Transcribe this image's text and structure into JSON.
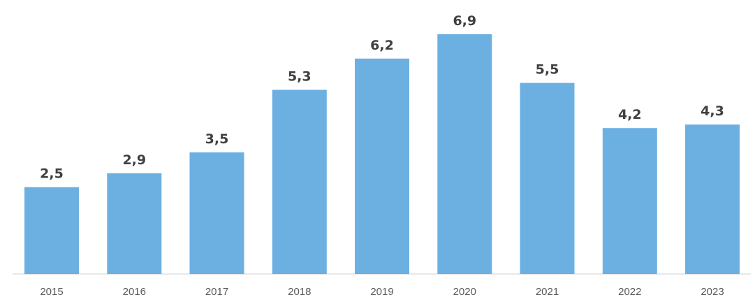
{
  "chart_data": {
    "type": "bar",
    "categories": [
      "2015",
      "2016",
      "2017",
      "2018",
      "2019",
      "2020",
      "2021",
      "2022",
      "2023"
    ],
    "values": [
      2.5,
      2.9,
      3.5,
      5.3,
      6.2,
      6.9,
      5.5,
      4.2,
      4.3
    ],
    "data_labels": [
      "2,5",
      "2,9",
      "3,5",
      "5,3",
      "6,2",
      "6,9",
      "5,5",
      "4,2",
      "4,3"
    ],
    "title": "",
    "xlabel": "",
    "ylabel": "",
    "ylim": [
      0,
      7.0
    ],
    "grid": false,
    "legend": "none",
    "bar_color": "#6cb0e2"
  }
}
